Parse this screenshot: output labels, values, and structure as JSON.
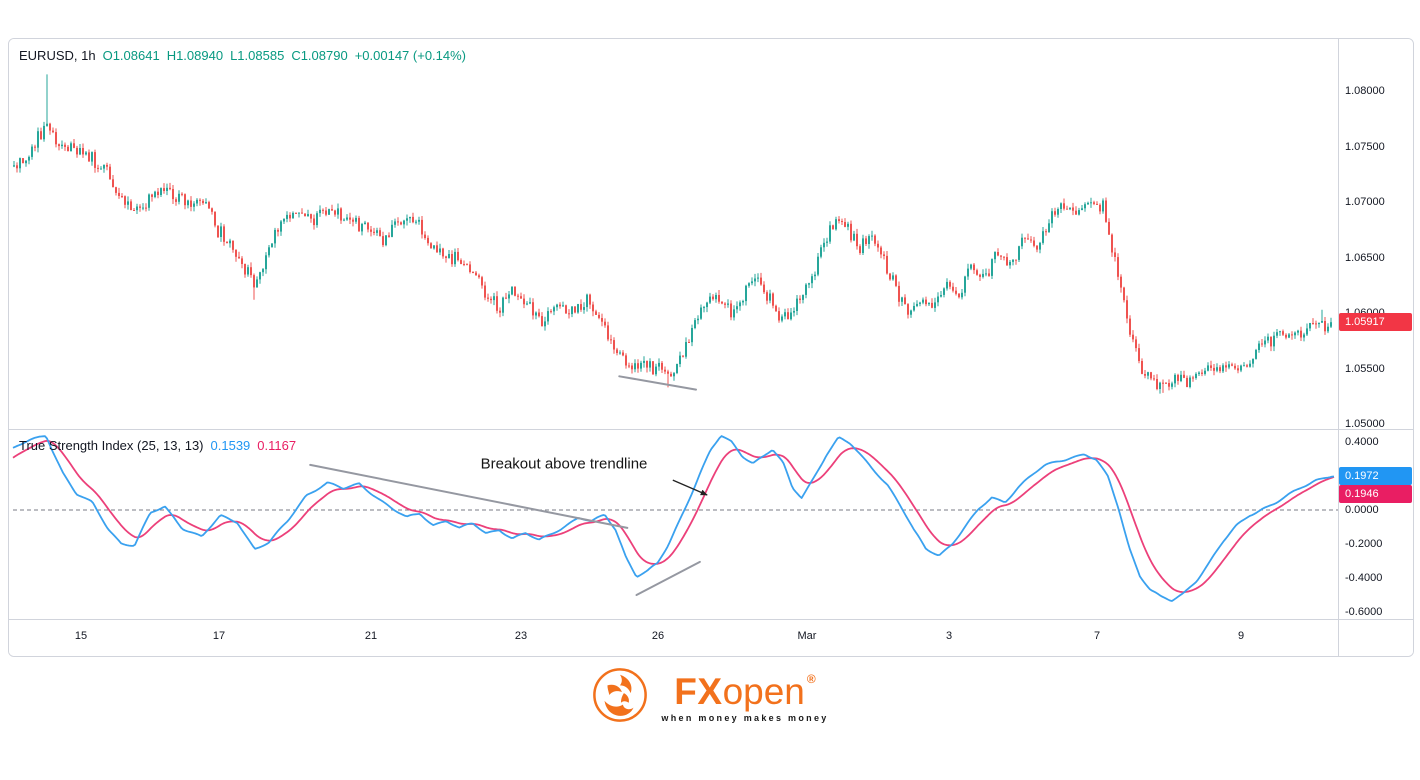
{
  "price_panel": {
    "legend": {
      "symbol": "EURUSD, 1h",
      "open": "O1.08641",
      "high": "H1.08940",
      "low": "L1.08585",
      "close": "C1.08790",
      "change": "+0.00147 (+0.14%)"
    },
    "last_price": "1.05917",
    "y_ticks": [
      "1.08000",
      "1.07500",
      "1.07000",
      "1.06500",
      "1.06000",
      "1.05500",
      "1.05000"
    ]
  },
  "tsi_panel": {
    "legend": {
      "title": "True Strength Index (25, 13, 13)",
      "value1": "0.1539",
      "value2": "0.1167"
    },
    "badges": {
      "tsi": "0.1972",
      "signal": "0.1946"
    },
    "y_ticks": [
      "0.4000",
      "0.2000",
      "0.0000",
      "-0.2000",
      "-0.4000",
      "-0.6000"
    ]
  },
  "time_axis": {
    "labels": [
      "15",
      "17",
      "21",
      "23",
      "26",
      "Mar",
      "3",
      "7",
      "9"
    ],
    "positions": [
      0.0515,
      0.156,
      0.271,
      0.3845,
      0.488,
      0.601,
      0.7086,
      0.8206,
      0.9296
    ]
  },
  "footer": {
    "brand_fx": "FX",
    "brand_open": "open",
    "registered": "®",
    "tagline": "when money makes money"
  },
  "colors": {
    "up": "#26a69a",
    "down": "#ef5350",
    "tsi_line": "#3aa1ef",
    "signal_line": "#ec407a",
    "legend_green": "#089981",
    "badge_price": "#f23645",
    "badge_tsi": "#2196f3",
    "badge_signal": "#e91e63",
    "trendline": "#9598a1",
    "zero_line": "#787b86",
    "separator": "#d1d4dc",
    "brand_orange": "#f2711c"
  },
  "chart_data": [
    {
      "type": "candlestick",
      "symbol": "EURUSD",
      "timeframe": "1h",
      "legend_ohlc": {
        "open": 1.08641,
        "high": 1.0894,
        "low": 1.08585,
        "close": 1.0879,
        "change": 0.00147,
        "change_pct": 0.14
      },
      "last_price": 1.05917,
      "ylim": [
        1.0495,
        1.0843
      ],
      "y_ticks": [
        1.08,
        1.075,
        1.07,
        1.065,
        1.06,
        1.055,
        1.05
      ],
      "x_labels": [
        "15",
        "17",
        "21",
        "23",
        "26",
        "Mar",
        "3",
        "7",
        "9"
      ],
      "bars": 440,
      "anchors": [
        [
          0.0,
          1.0732
        ],
        [
          0.012,
          1.0742
        ],
        [
          0.024,
          1.0772
        ],
        [
          0.032,
          1.0752
        ],
        [
          0.045,
          1.0748
        ],
        [
          0.058,
          1.0738
        ],
        [
          0.072,
          1.0726
        ],
        [
          0.085,
          1.0695
        ],
        [
          0.095,
          1.0692
        ],
        [
          0.105,
          1.0703
        ],
        [
          0.118,
          1.071
        ],
        [
          0.13,
          1.0698
        ],
        [
          0.142,
          1.0703
        ],
        [
          0.155,
          1.0674
        ],
        [
          0.168,
          1.0652
        ],
        [
          0.183,
          1.0624
        ],
        [
          0.193,
          1.0655
        ],
        [
          0.205,
          1.0688
        ],
        [
          0.215,
          1.0692
        ],
        [
          0.228,
          1.0684
        ],
        [
          0.24,
          1.0694
        ],
        [
          0.255,
          1.0683
        ],
        [
          0.27,
          1.0676
        ],
        [
          0.282,
          1.0662
        ],
        [
          0.294,
          1.0686
        ],
        [
          0.306,
          1.0678
        ],
        [
          0.318,
          1.066
        ],
        [
          0.332,
          1.0651
        ],
        [
          0.345,
          1.0644
        ],
        [
          0.358,
          1.0618
        ],
        [
          0.368,
          1.0605
        ],
        [
          0.378,
          1.0621
        ],
        [
          0.39,
          1.0608
        ],
        [
          0.402,
          1.0592
        ],
        [
          0.413,
          1.0612
        ],
        [
          0.424,
          1.06
        ],
        [
          0.435,
          1.0614
        ],
        [
          0.447,
          1.0592
        ],
        [
          0.457,
          1.0568
        ],
        [
          0.467,
          1.0552
        ],
        [
          0.478,
          1.0556
        ],
        [
          0.49,
          1.055
        ],
        [
          0.5,
          1.0548
        ],
        [
          0.51,
          1.0572
        ],
        [
          0.522,
          1.0606
        ],
        [
          0.533,
          1.0617
        ],
        [
          0.545,
          1.06
        ],
        [
          0.557,
          1.0626
        ],
        [
          0.565,
          1.0631
        ],
        [
          0.575,
          1.0608
        ],
        [
          0.583,
          1.0592
        ],
        [
          0.593,
          1.0604
        ],
        [
          0.605,
          1.063
        ],
        [
          0.615,
          1.066
        ],
        [
          0.624,
          1.0687
        ],
        [
          0.633,
          1.0673
        ],
        [
          0.642,
          1.0659
        ],
        [
          0.651,
          1.067
        ],
        [
          0.661,
          1.0648
        ],
        [
          0.67,
          1.062
        ],
        [
          0.679,
          1.0597
        ],
        [
          0.69,
          1.0614
        ],
        [
          0.698,
          1.0606
        ],
        [
          0.708,
          1.0624
        ],
        [
          0.718,
          1.0614
        ],
        [
          0.727,
          1.0641
        ],
        [
          0.737,
          1.063
        ],
        [
          0.747,
          1.0654
        ],
        [
          0.757,
          1.0645
        ],
        [
          0.767,
          1.0668
        ],
        [
          0.777,
          1.066
        ],
        [
          0.787,
          1.0688
        ],
        [
          0.796,
          1.07
        ],
        [
          0.806,
          1.069
        ],
        [
          0.818,
          1.07
        ],
        [
          0.827,
          1.0694
        ],
        [
          0.837,
          1.0643
        ],
        [
          0.846,
          1.059
        ],
        [
          0.855,
          1.0553
        ],
        [
          0.865,
          1.054
        ],
        [
          0.873,
          1.0536
        ],
        [
          0.882,
          1.0545
        ],
        [
          0.892,
          1.0539
        ],
        [
          0.902,
          1.0548
        ],
        [
          0.912,
          1.0544
        ],
        [
          0.922,
          1.0552
        ],
        [
          0.93,
          1.0549
        ],
        [
          0.94,
          1.0562
        ],
        [
          0.95,
          1.0573
        ],
        [
          0.96,
          1.0582
        ],
        [
          0.97,
          1.0577
        ],
        [
          0.98,
          1.0588
        ],
        [
          0.99,
          1.059
        ],
        [
          1.0,
          1.05917
        ]
      ],
      "wick_events": [
        {
          "f": 0.025,
          "high": 1.0815
        },
        {
          "f": 0.183,
          "low": 1.0612
        },
        {
          "f": 0.497,
          "low": 1.0533
        },
        {
          "f": 0.873,
          "low": 1.0528
        },
        {
          "f": 0.993,
          "high": 1.0603
        }
      ],
      "trendline": {
        "f1": 0.459,
        "p1": 1.0543,
        "f2": 0.517,
        "p2": 1.0531
      }
    },
    {
      "type": "line",
      "title": "True Strength Index (25, 13, 13)",
      "ylim": [
        -0.62,
        0.45
      ],
      "y_ticks": [
        0.4,
        0.2,
        0.0,
        -0.2,
        -0.4,
        -0.6
      ],
      "zero_line": {
        "value": 0,
        "style": "dashed"
      },
      "series": [
        {
          "name": "TSI",
          "last": 0.1972,
          "anchors": [
            [
              0.0,
              0.35
            ],
            [
              0.013,
              0.4
            ],
            [
              0.025,
              0.435
            ],
            [
              0.038,
              0.22
            ],
            [
              0.048,
              0.1
            ],
            [
              0.06,
              0.05
            ],
            [
              0.072,
              -0.1
            ],
            [
              0.082,
              -0.19
            ],
            [
              0.092,
              -0.21
            ],
            [
              0.104,
              -0.03
            ],
            [
              0.115,
              0.01
            ],
            [
              0.128,
              -0.11
            ],
            [
              0.143,
              -0.16
            ],
            [
              0.157,
              -0.03
            ],
            [
              0.17,
              -0.06
            ],
            [
              0.183,
              -0.22
            ],
            [
              0.194,
              -0.19
            ],
            [
              0.208,
              -0.07
            ],
            [
              0.222,
              0.08
            ],
            [
              0.238,
              0.15
            ],
            [
              0.25,
              0.12
            ],
            [
              0.262,
              0.16
            ],
            [
              0.275,
              0.09
            ],
            [
              0.288,
              0.01
            ],
            [
              0.298,
              -0.04
            ],
            [
              0.308,
              -0.02
            ],
            [
              0.318,
              -0.09
            ],
            [
              0.328,
              -0.07
            ],
            [
              0.338,
              -0.12
            ],
            [
              0.348,
              -0.09
            ],
            [
              0.358,
              -0.14
            ],
            [
              0.368,
              -0.11
            ],
            [
              0.378,
              -0.16
            ],
            [
              0.388,
              -0.13
            ],
            [
              0.398,
              -0.17
            ],
            [
              0.408,
              -0.13
            ],
            [
              0.418,
              -0.09
            ],
            [
              0.428,
              -0.05
            ],
            [
              0.438,
              -0.08
            ],
            [
              0.448,
              -0.04
            ],
            [
              0.456,
              -0.12
            ],
            [
              0.464,
              -0.28
            ],
            [
              0.472,
              -0.39
            ],
            [
              0.48,
              -0.36
            ],
            [
              0.488,
              -0.31
            ],
            [
              0.496,
              -0.2
            ],
            [
              0.504,
              -0.06
            ],
            [
              0.512,
              0.08
            ],
            [
              0.52,
              0.22
            ],
            [
              0.528,
              0.35
            ],
            [
              0.536,
              0.43
            ],
            [
              0.544,
              0.39
            ],
            [
              0.552,
              0.31
            ],
            [
              0.56,
              0.27
            ],
            [
              0.568,
              0.31
            ],
            [
              0.575,
              0.35
            ],
            [
              0.583,
              0.27
            ],
            [
              0.59,
              0.13
            ],
            [
              0.597,
              0.08
            ],
            [
              0.606,
              0.2
            ],
            [
              0.616,
              0.34
            ],
            [
              0.625,
              0.43
            ],
            [
              0.634,
              0.39
            ],
            [
              0.643,
              0.31
            ],
            [
              0.652,
              0.23
            ],
            [
              0.662,
              0.14
            ],
            [
              0.672,
              0.01
            ],
            [
              0.682,
              -0.13
            ],
            [
              0.691,
              -0.23
            ],
            [
              0.701,
              -0.26
            ],
            [
              0.711,
              -0.19
            ],
            [
              0.721,
              -0.09
            ],
            [
              0.731,
              0.01
            ],
            [
              0.741,
              0.08
            ],
            [
              0.751,
              0.05
            ],
            [
              0.761,
              0.13
            ],
            [
              0.771,
              0.19
            ],
            [
              0.781,
              0.25
            ],
            [
              0.791,
              0.28
            ],
            [
              0.801,
              0.31
            ],
            [
              0.811,
              0.33
            ],
            [
              0.82,
              0.3
            ],
            [
              0.829,
              0.2
            ],
            [
              0.837,
              0.02
            ],
            [
              0.845,
              -0.21
            ],
            [
              0.853,
              -0.38
            ],
            [
              0.861,
              -0.47
            ],
            [
              0.869,
              -0.52
            ],
            [
              0.877,
              -0.545
            ],
            [
              0.886,
              -0.5
            ],
            [
              0.896,
              -0.42
            ],
            [
              0.906,
              -0.31
            ],
            [
              0.916,
              -0.19
            ],
            [
              0.926,
              -0.09
            ],
            [
              0.936,
              -0.02
            ],
            [
              0.946,
              0.02
            ],
            [
              0.956,
              0.05
            ],
            [
              0.966,
              0.09
            ],
            [
              0.976,
              0.13
            ],
            [
              0.986,
              0.17
            ],
            [
              1.0,
              0.1972
            ]
          ]
        },
        {
          "name": "Signal",
          "last": 0.1946,
          "derived_from": "TSI",
          "smoothing": "ema"
        }
      ],
      "trendlines": [
        {
          "f1": 0.225,
          "v1": 0.265,
          "f2": 0.465,
          "v2": -0.105
        },
        {
          "f1": 0.472,
          "v1": -0.5,
          "f2": 0.52,
          "v2": -0.305
        }
      ],
      "annotation": {
        "text": "Breakout above trendline",
        "cx_f": 0.417,
        "cy_v": 0.27,
        "arrow": {
          "x1_f": 0.4995,
          "v1": 0.176,
          "x2_f": 0.5255,
          "v2": 0.088
        }
      }
    }
  ]
}
